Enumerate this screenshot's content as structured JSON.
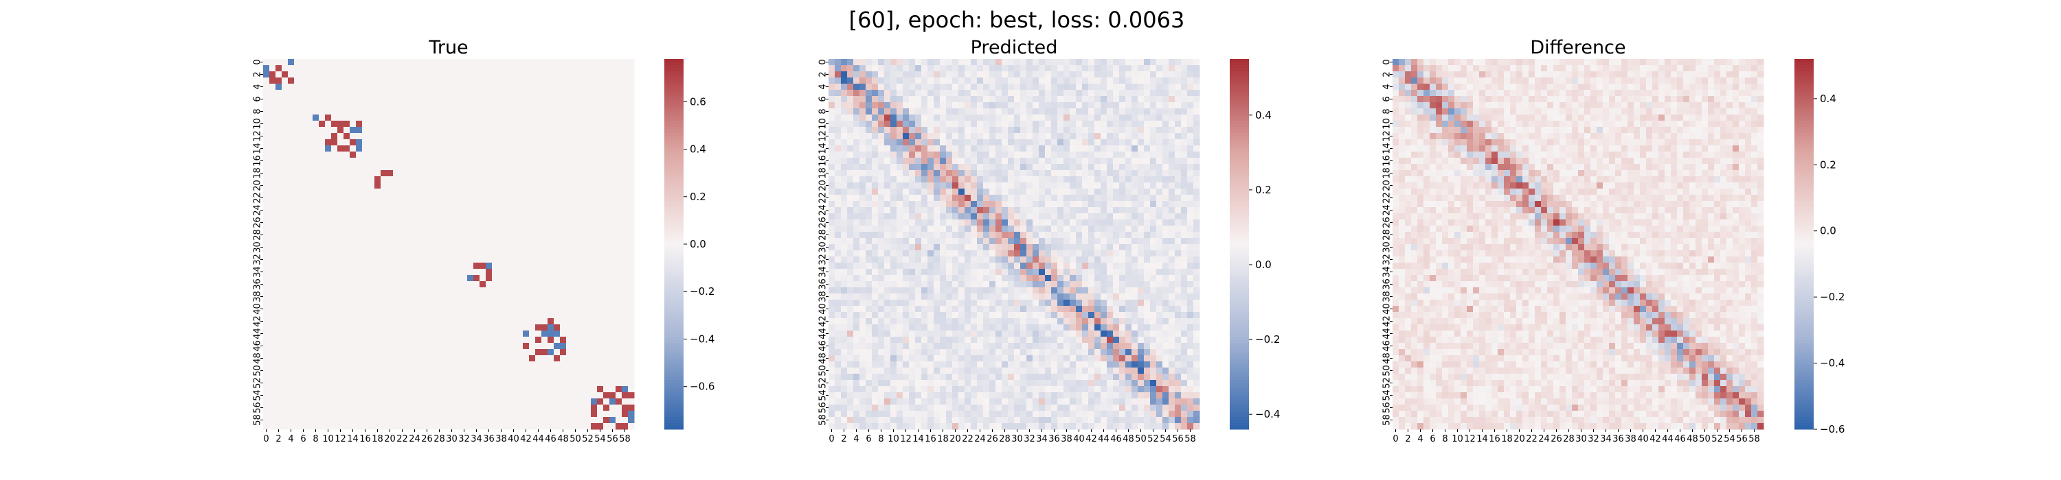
{
  "figure": {
    "suptitle": "[60], epoch: best, loss: 0.0063"
  },
  "colormap": {
    "name": "vlag",
    "stops": [
      "#3064ac",
      "#a9b8d6",
      "#f7f3f3",
      "#dda7a3",
      "#a92f36"
    ]
  },
  "chart_data": [
    {
      "type": "heatmap",
      "title": "True",
      "n": 60,
      "tick_labels": [
        "0",
        "2",
        "4",
        "6",
        "8",
        "10",
        "12",
        "14",
        "16",
        "18",
        "20",
        "22",
        "24",
        "26",
        "28",
        "30",
        "32",
        "34",
        "36",
        "38",
        "40",
        "42",
        "44",
        "46",
        "48",
        "50",
        "52",
        "54",
        "56",
        "58"
      ],
      "vmin": -0.78,
      "vmax": 0.78,
      "colorbar_ticks": [
        -0.6,
        -0.4,
        -0.2,
        0.0,
        0.2,
        0.4,
        0.6
      ],
      "colorbar_labels": [
        "−0.6",
        "−0.4",
        "−0.2",
        "0.0",
        "0.2",
        "0.4",
        "0.6"
      ],
      "blocks": [
        [
          0,
          5
        ],
        [
          8,
          11
        ],
        [
          10,
          16
        ],
        [
          18,
          21
        ],
        [
          33,
          37
        ],
        [
          42,
          49
        ],
        [
          53,
          60
        ]
      ],
      "background": 0.0
    },
    {
      "type": "heatmap",
      "title": "Predicted",
      "n": 60,
      "tick_labels": [
        "0",
        "2",
        "4",
        "6",
        "8",
        "10",
        "12",
        "14",
        "16",
        "18",
        "20",
        "22",
        "24",
        "26",
        "28",
        "30",
        "32",
        "34",
        "36",
        "38",
        "40",
        "42",
        "44",
        "46",
        "48",
        "50",
        "52",
        "54",
        "56",
        "58"
      ],
      "vmin": -0.44,
      "vmax": 0.55,
      "colorbar_ticks": [
        -0.4,
        -0.2,
        0.0,
        0.2,
        0.4
      ],
      "colorbar_labels": [
        "−0.4",
        "−0.2",
        "0.0",
        "0.2",
        "0.4"
      ],
      "diagonal_band": true,
      "background": 0.02
    },
    {
      "type": "heatmap",
      "title": "Difference",
      "n": 60,
      "tick_labels": [
        "0",
        "2",
        "4",
        "6",
        "8",
        "10",
        "12",
        "14",
        "16",
        "18",
        "20",
        "22",
        "24",
        "26",
        "28",
        "30",
        "32",
        "34",
        "36",
        "38",
        "40",
        "42",
        "44",
        "46",
        "48",
        "50",
        "52",
        "54",
        "56",
        "58"
      ],
      "vmin": -0.6,
      "vmax": 0.52,
      "colorbar_ticks": [
        -0.6,
        -0.4,
        -0.2,
        0.0,
        0.2,
        0.4
      ],
      "colorbar_labels": [
        "−0.6",
        "−0.4",
        "−0.2",
        "0.0",
        "0.2",
        "0.4"
      ],
      "diagonal_band": true,
      "background": 0.01
    }
  ]
}
